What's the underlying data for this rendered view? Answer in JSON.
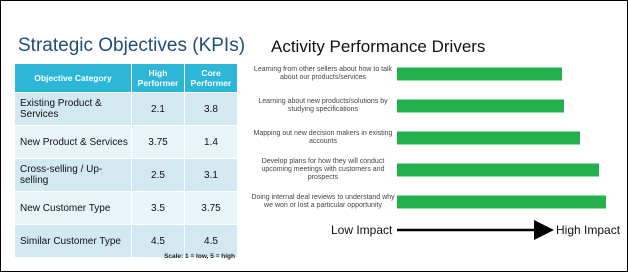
{
  "table": {
    "title": "Strategic Objectives (KPIs)",
    "header": [
      "Objective Category",
      "High Performer",
      "Core Performer"
    ],
    "rows": [
      [
        "Existing Product & Services",
        "2.1",
        "3.8"
      ],
      [
        "New Product & Services",
        "3.75",
        "1.4"
      ],
      [
        "Cross-selling / Up-selling",
        "2.5",
        "3.1"
      ],
      [
        "New Customer Type",
        "3.5",
        "3.75"
      ],
      [
        "Similar Customer Type",
        "4.5",
        "4.5"
      ]
    ],
    "note": "Scale: 1 = low, 5 = high"
  },
  "chart_data": {
    "type": "bar",
    "orientation": "horizontal",
    "title": "Activity Performance Drivers",
    "categories": [
      "Learning from other sellers about how to talk about our products/services",
      "Learning about new products/solutions by studying specifications",
      "Mapping out new decision makers in existing accounts",
      "Develop plans for how they will conduct upcoming meetings with customers and prospects",
      "Doing internal deal reviews to understand why we won or lost a particular opportunity"
    ],
    "values": [
      75,
      76,
      83,
      92,
      95
    ],
    "color": "#22b14c",
    "xlim": [
      0,
      100
    ],
    "axis_labels": [
      "Low Impact",
      "High Impact"
    ]
  }
}
